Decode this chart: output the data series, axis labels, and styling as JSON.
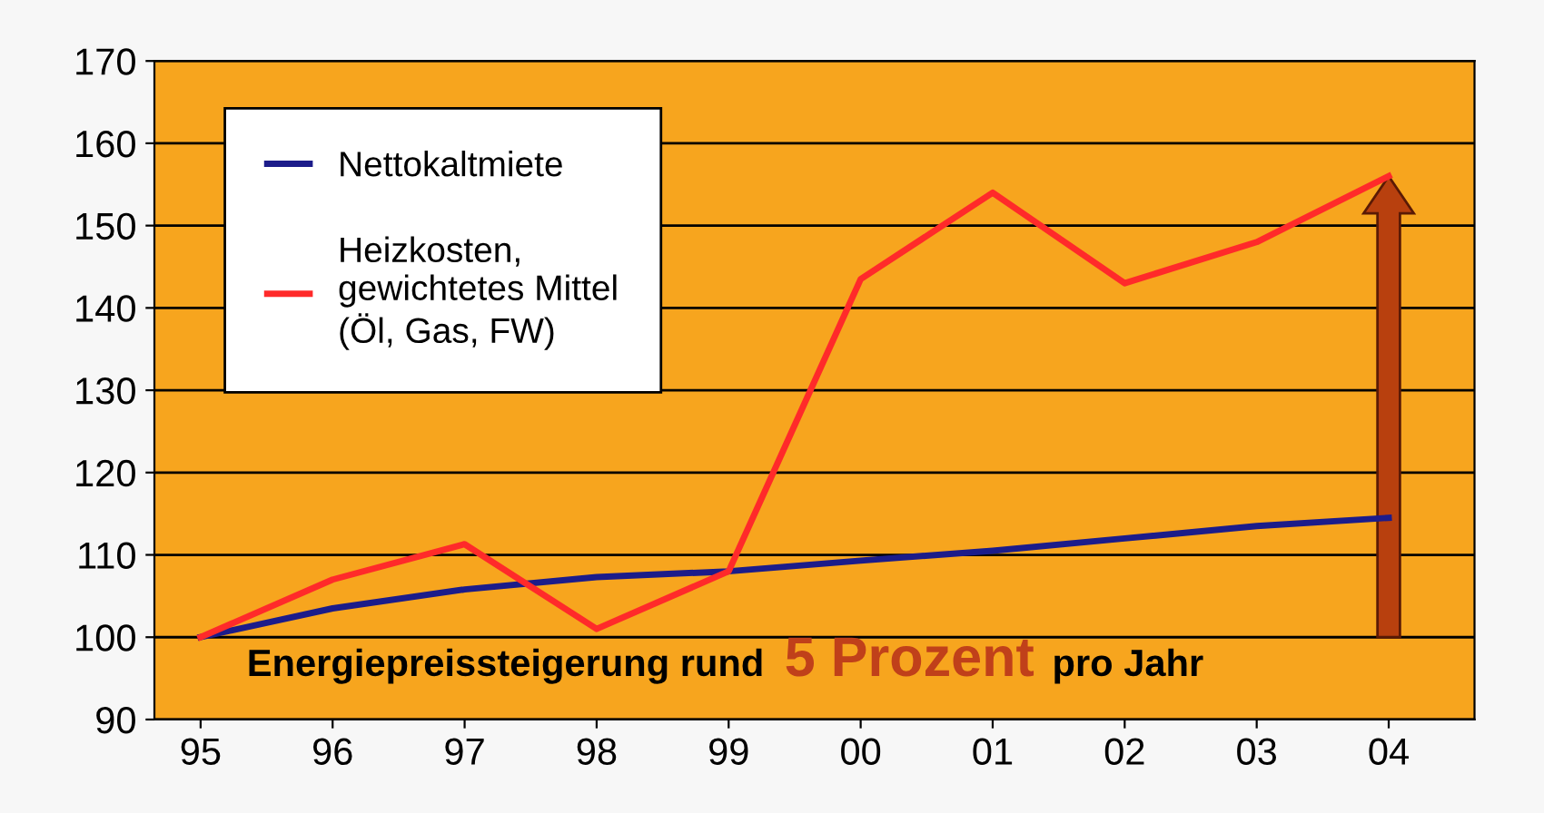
{
  "chart_data": {
    "type": "line",
    "categories": [
      "95",
      "96",
      "97",
      "98",
      "99",
      "00",
      "01",
      "02",
      "03",
      "04"
    ],
    "series": [
      {
        "name": "Nettokaltmiete",
        "color": "#1c1c8a",
        "values": [
          100,
          103.5,
          105.8,
          107.3,
          108,
          109.3,
          110.5,
          112,
          113.5,
          114.5
        ]
      },
      {
        "name": "Heizkosten,\ngewichtetes Mittel\n(Öl, Gas, FW)",
        "color": "#ff2a2a",
        "values": [
          100,
          107,
          111.3,
          101,
          108,
          143.5,
          154,
          143,
          148,
          156
        ]
      }
    ],
    "ylim": [
      90,
      170
    ],
    "yticks": [
      90,
      100,
      110,
      120,
      130,
      140,
      150,
      160,
      170
    ],
    "grid": "y",
    "legend": "top left",
    "marker": "none",
    "annotations": [
      "Energiepreissteigerung rund",
      "5 Prozent",
      "pro Jahr"
    ]
  }
}
